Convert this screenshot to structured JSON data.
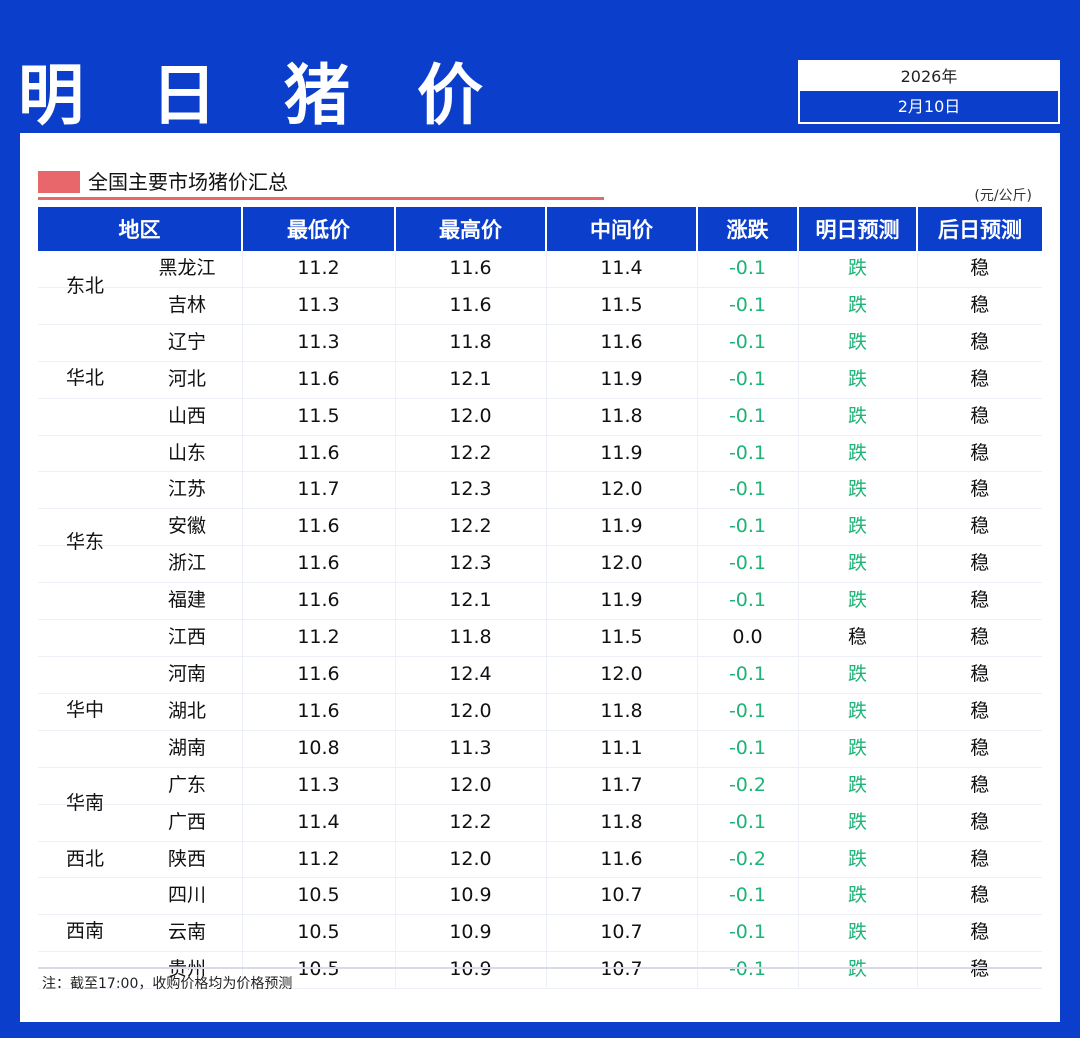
{
  "header": {
    "title": "明 日 猪 价",
    "year": "2026年",
    "date": "2月10日"
  },
  "section": {
    "title": "全国主要市场猪价汇总",
    "unit": "(元/公斤)"
  },
  "colors": {
    "brand_blue": "#0b3fcb",
    "accent_red": "#e8676a",
    "down_green": "#1fb377"
  },
  "table": {
    "headers": [
      "地区",
      "最低价",
      "最高价",
      "中间价",
      "涨跌",
      "明日预测",
      "后日预测"
    ],
    "groups": [
      {
        "region": "东北",
        "rows": [
          [
            "黑龙江",
            "11.2",
            "11.6",
            "11.4",
            "-0.1",
            "跌",
            "稳"
          ],
          [
            "吉林",
            "11.3",
            "11.6",
            "11.5",
            "-0.1",
            "跌",
            "稳"
          ]
        ]
      },
      {
        "region": "华北",
        "rows": [
          [
            "辽宁",
            "11.3",
            "11.8",
            "11.6",
            "-0.1",
            "跌",
            "稳"
          ],
          [
            "河北",
            "11.6",
            "12.1",
            "11.9",
            "-0.1",
            "跌",
            "稳"
          ],
          [
            "山西",
            "11.5",
            "12.0",
            "11.8",
            "-0.1",
            "跌",
            "稳"
          ]
        ]
      },
      {
        "region": "华东",
        "rows": [
          [
            "山东",
            "11.6",
            "12.2",
            "11.9",
            "-0.1",
            "跌",
            "稳"
          ],
          [
            "江苏",
            "11.7",
            "12.3",
            "12.0",
            "-0.1",
            "跌",
            "稳"
          ],
          [
            "安徽",
            "11.6",
            "12.2",
            "11.9",
            "-0.1",
            "跌",
            "稳"
          ],
          [
            "浙江",
            "11.6",
            "12.3",
            "12.0",
            "-0.1",
            "跌",
            "稳"
          ],
          [
            "福建",
            "11.6",
            "12.1",
            "11.9",
            "-0.1",
            "跌",
            "稳"
          ],
          [
            "江西",
            "11.2",
            "11.8",
            "11.5",
            "0.0",
            "稳",
            "稳"
          ]
        ]
      },
      {
        "region": "华中",
        "rows": [
          [
            "河南",
            "11.6",
            "12.4",
            "12.0",
            "-0.1",
            "跌",
            "稳"
          ],
          [
            "湖北",
            "11.6",
            "12.0",
            "11.8",
            "-0.1",
            "跌",
            "稳"
          ],
          [
            "湖南",
            "10.8",
            "11.3",
            "11.1",
            "-0.1",
            "跌",
            "稳"
          ]
        ]
      },
      {
        "region": "华南",
        "rows": [
          [
            "广东",
            "11.3",
            "12.0",
            "11.7",
            "-0.2",
            "跌",
            "稳"
          ],
          [
            "广西",
            "11.4",
            "12.2",
            "11.8",
            "-0.1",
            "跌",
            "稳"
          ]
        ]
      },
      {
        "region": "西北",
        "rows": [
          [
            "陕西",
            "11.2",
            "12.0",
            "11.6",
            "-0.2",
            "跌",
            "稳"
          ]
        ]
      },
      {
        "region": "西南",
        "rows": [
          [
            "四川",
            "10.5",
            "10.9",
            "10.7",
            "-0.1",
            "跌",
            "稳"
          ],
          [
            "云南",
            "10.5",
            "10.9",
            "10.7",
            "-0.1",
            "跌",
            "稳"
          ],
          [
            "贵州",
            "10.5",
            "10.9",
            "10.7",
            "-0.1",
            "跌",
            "稳"
          ]
        ]
      }
    ]
  },
  "note": "注：截至17:00，收购价格均为价格预测"
}
